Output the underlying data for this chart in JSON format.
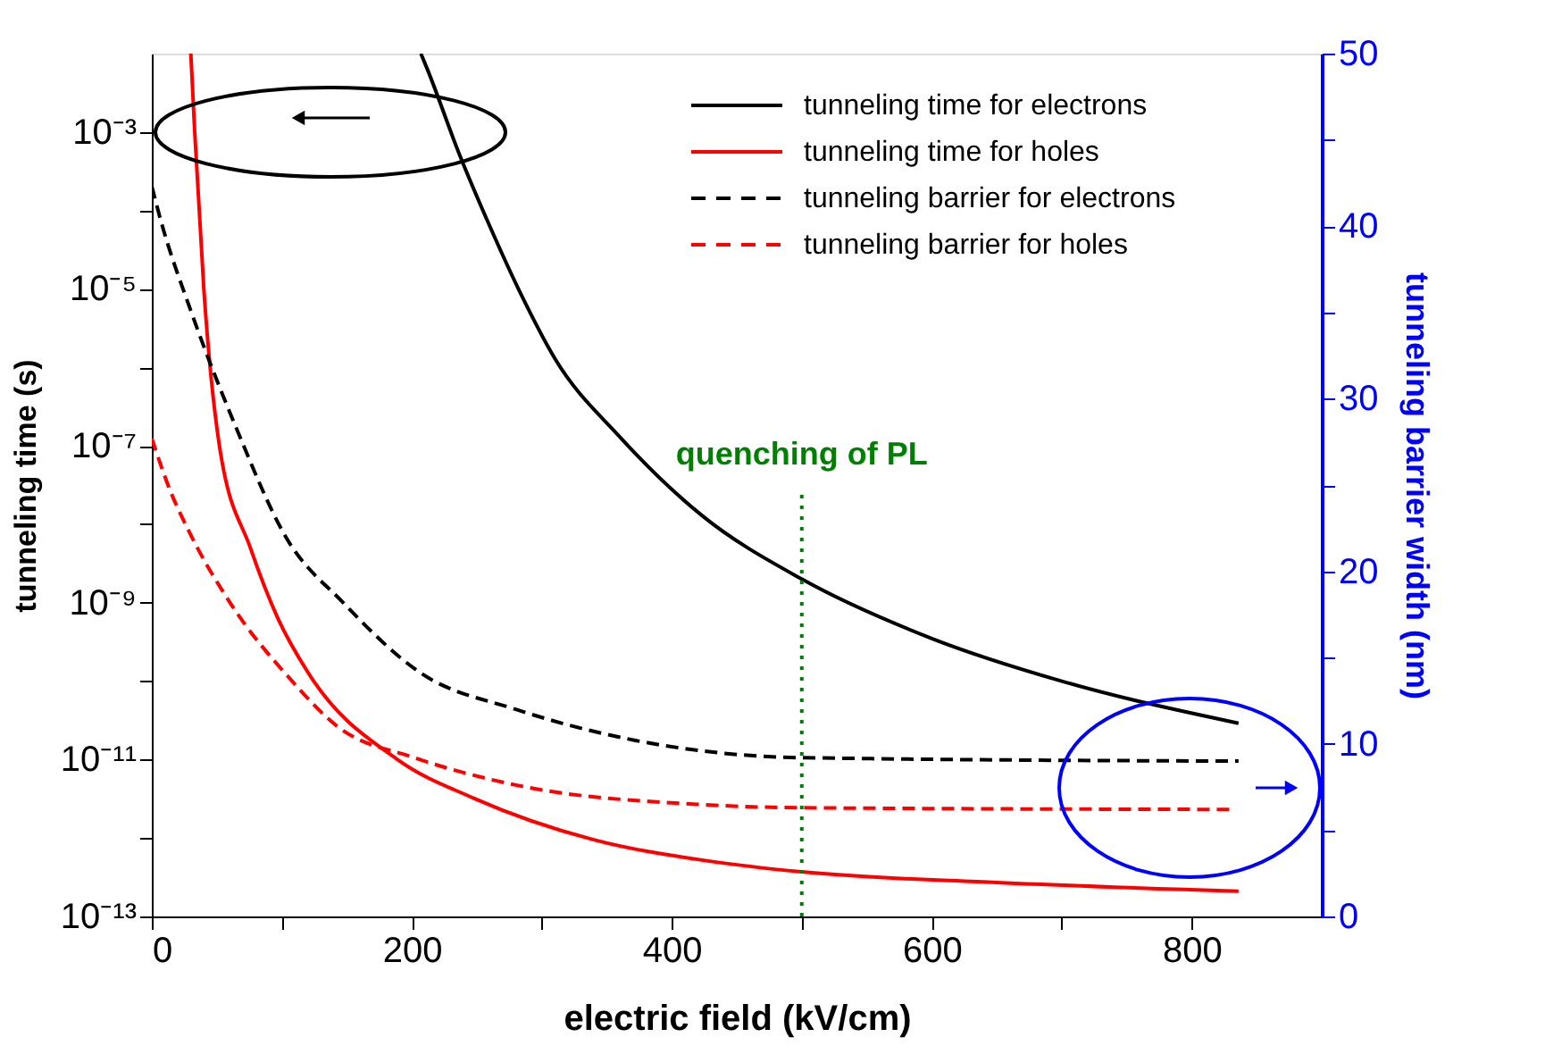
{
  "chart_data": {
    "type": "line",
    "xlabel": "electric field (kV/cm)",
    "ylabel": "tunneling time (s)",
    "y2label": "tunneling barrier width (nm)",
    "log": "y",
    "xlim": [
      0,
      900
    ],
    "xticks": [
      0,
      {
        "value": 100,
        "label": null
      },
      200,
      {
        "value": 300,
        "label": null
      },
      400,
      {
        "value": 500,
        "label": null
      },
      600,
      {
        "value": 700,
        "label": null
      },
      800
    ],
    "ylim": [
      1e-13,
      0.01
    ],
    "yticks": [
      {
        "value": 1e-13,
        "label": "10⁻¹³"
      },
      {
        "value": 1e-12,
        "label": null
      },
      {
        "value": 1e-11,
        "label": "10⁻¹¹"
      },
      {
        "value": 1e-10,
        "label": null
      },
      {
        "value": 1e-09,
        "label": "10⁻⁹"
      },
      {
        "value": 1e-08,
        "label": null
      },
      {
        "value": 1e-07,
        "label": "10⁻⁷"
      },
      {
        "value": 1e-06,
        "label": null
      },
      {
        "value": 1e-05,
        "label": "10⁻⁵"
      },
      {
        "value": 0.0001,
        "label": null
      },
      {
        "value": 0.001,
        "label": "10⁻³"
      }
    ],
    "y2lim": [
      0,
      50
    ],
    "y2ticks": [
      0,
      {
        "value": 5,
        "label": null
      },
      10,
      {
        "value": 15,
        "label": null
      },
      20,
      {
        "value": 25,
        "label": null
      },
      30,
      {
        "value": 35,
        "label": null
      },
      40,
      {
        "value": 45,
        "label": null
      },
      50
    ],
    "grid": false,
    "legend": "top right",
    "marker": "none",
    "series": [
      {
        "name": "tunneling time for electrons",
        "color": "#000000",
        "line_style": "solid",
        "x": [
          207,
          212,
          237,
          260,
          285,
          310,
          360,
          423,
          500,
          600,
          700,
          836
        ],
        "values": [
          0.01,
          0.0063,
          0.0005,
          6.3e-05,
          7.9e-06,
          1.3e-06,
          1.3e-07,
          1.3e-08,
          2e-09,
          3.5e-10,
          1e-10,
          2.9e-11
        ]
      },
      {
        "name": "tunneling time for holes",
        "color": "#ff0000",
        "line_style": "solid",
        "x": [
          30,
          33,
          40,
          52,
          76,
          97,
          120,
          189,
          248,
          340,
          428,
          500,
          650,
          836
        ],
        "values": [
          0.01,
          0.001,
          1e-05,
          1e-07,
          4.9e-09,
          6.3e-10,
          1.3e-10,
          1e-11,
          3.2e-12,
          9.5e-13,
          5.1e-13,
          3.7e-13,
          2.7e-13,
          2.1e-13
        ]
      },
      {
        "name": "tunneling barrier for electrons",
        "color": "#000000",
        "line_style": "dashed",
        "axis": "y2",
        "x": [
          0,
          7,
          30,
          65,
          103,
          147,
          207,
          280,
          372,
          500,
          836
        ],
        "values": [
          42.3,
          40.3,
          35.1,
          28.3,
          22.0,
          18.2,
          14.1,
          12.0,
          10.2,
          9.2,
          9.0
        ]
      },
      {
        "name": "tunneling barrier for holes",
        "color": "#ff0000",
        "line_style": "dashed",
        "axis": "y2",
        "x": [
          0,
          14,
          28,
          60,
          106,
          143,
          202,
          281,
          419,
          500,
          830
        ],
        "values": [
          27.7,
          24.7,
          22.4,
          18.2,
          13.8,
          11.0,
          9.2,
          7.6,
          6.5,
          6.3,
          6.2
        ]
      }
    ],
    "ref_lines": [
      {
        "axis": "x",
        "value": 500,
        "label": "quenching of PL",
        "color": "#008000",
        "line_style": "dotted"
      }
    ]
  }
}
